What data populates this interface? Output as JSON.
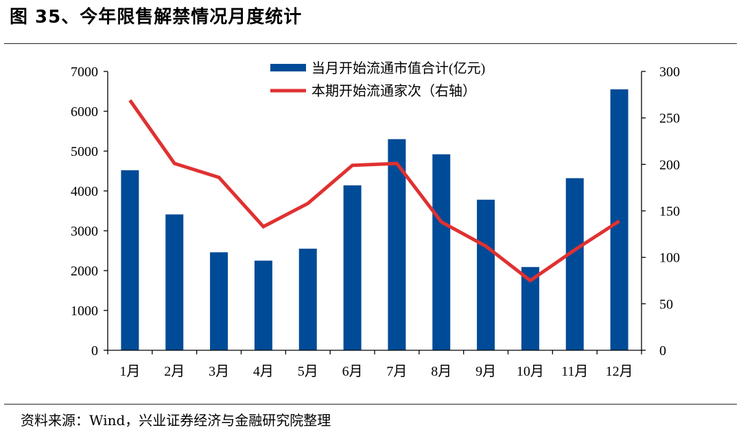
{
  "title": "图 35、今年限售解禁情况月度统计",
  "source": "资料来源：Wind，兴业证券经济与金融研究院整理",
  "colors": {
    "bar": "#004b97",
    "line": "#e03131",
    "axis": "#000000"
  },
  "chart_data": {
    "type": "bar+line",
    "categories": [
      "1月",
      "2月",
      "3月",
      "4月",
      "5月",
      "6月",
      "7月",
      "8月",
      "9月",
      "10月",
      "11月",
      "12月"
    ],
    "series": [
      {
        "name": "当月开始流通市值合计(亿元)",
        "type": "bar",
        "axis": "left",
        "values": [
          4520,
          3410,
          2460,
          2250,
          2550,
          4140,
          5300,
          4920,
          3780,
          2090,
          4320,
          6550
        ]
      },
      {
        "name": "本期开始流通家次（右轴）",
        "type": "line",
        "axis": "right",
        "values": [
          269,
          201,
          186,
          133,
          158,
          199,
          201,
          138,
          112,
          75,
          108,
          139
        ]
      }
    ],
    "y_left": {
      "min": 0,
      "max": 7000,
      "ticks": [
        0,
        1000,
        2000,
        3000,
        4000,
        5000,
        6000,
        7000
      ]
    },
    "y_right": {
      "min": 0,
      "max": 300,
      "ticks": [
        0,
        50,
        100,
        150,
        200,
        250,
        300
      ]
    },
    "legend_position": "top-center"
  }
}
